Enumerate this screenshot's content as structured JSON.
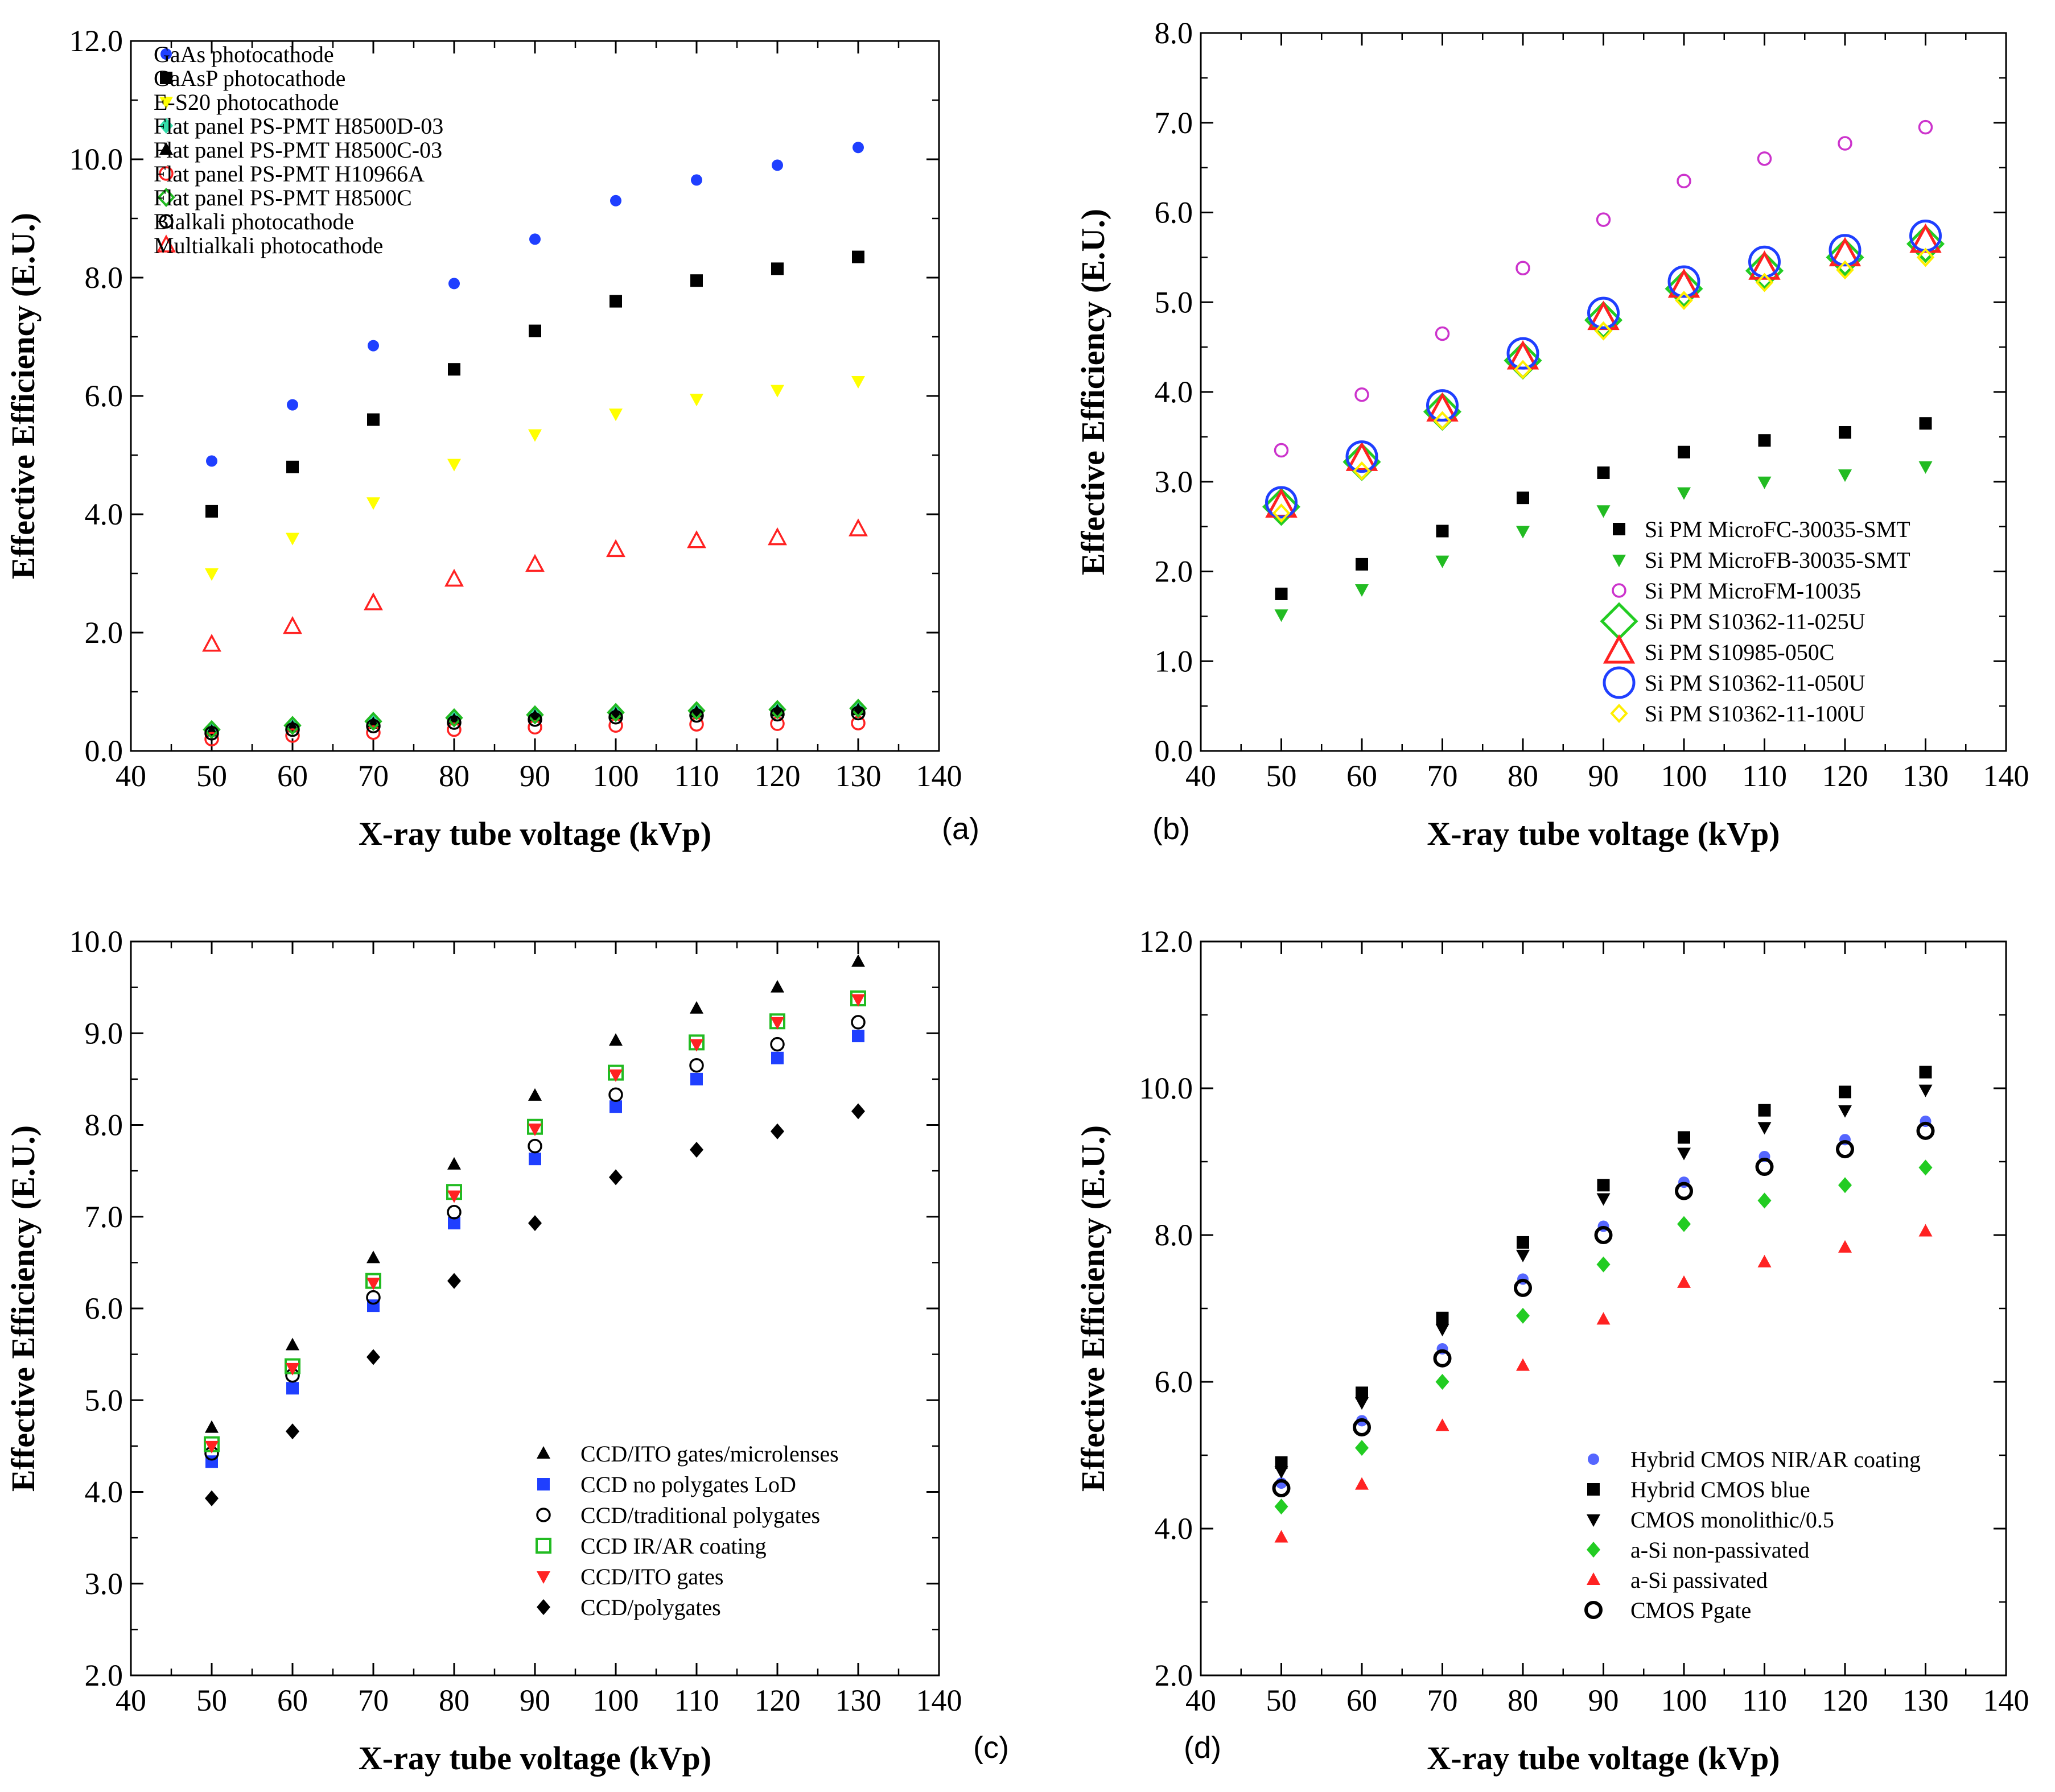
{
  "chart_data": [
    {
      "type": "scatter",
      "panel_label": "(a)",
      "xlabel": "X-ray tube voltage (kVp)",
      "ylabel": "Effective Efficiency (E.U.)",
      "xlim": [
        40,
        140
      ],
      "ylim": [
        0,
        12
      ],
      "xticks": [
        "40",
        "50",
        "60",
        "70",
        "80",
        "90",
        "100",
        "110",
        "120",
        "130",
        "140"
      ],
      "yticks": [
        "0.0",
        "2.0",
        "4.0",
        "6.0",
        "8.0",
        "10.0",
        "12.0"
      ],
      "grid": false,
      "legend_position": "top-left",
      "x": [
        50,
        60,
        70,
        80,
        90,
        100,
        110,
        120,
        130
      ],
      "series": [
        {
          "name": "GaAs photocathode",
          "marker": "dot",
          "color": "#1f3fff",
          "values": [
            4.9,
            5.85,
            6.85,
            7.9,
            8.65,
            9.3,
            9.65,
            9.9,
            10.2
          ]
        },
        {
          "name": "GaAsP photocathode",
          "marker": "square",
          "color": "#000000",
          "values": [
            4.05,
            4.8,
            5.6,
            6.45,
            7.1,
            7.6,
            7.95,
            8.15,
            8.35
          ]
        },
        {
          "name": "E-S20 photocathode",
          "marker": "tri-down",
          "color": "#ffff00",
          "values": [
            3.0,
            3.6,
            4.2,
            4.85,
            5.35,
            5.7,
            5.95,
            6.1,
            6.25
          ]
        },
        {
          "name": "Flat panel PS-PMT H8500D-03",
          "marker": "diamond",
          "color": "#33ddaa",
          "values": [
            0.35,
            0.42,
            0.48,
            0.55,
            0.6,
            0.63,
            0.66,
            0.68,
            0.7
          ]
        },
        {
          "name": "Flat panel PS-PMT H8500C-03",
          "marker": "triangle",
          "color": "#000000",
          "values": [
            0.33,
            0.4,
            0.46,
            0.52,
            0.58,
            0.62,
            0.65,
            0.67,
            0.69
          ]
        },
        {
          "name": "Flat panel PS-PMT H10966A",
          "marker": "circle-open",
          "color": "#ff2222",
          "values": [
            0.2,
            0.26,
            0.31,
            0.36,
            0.4,
            0.43,
            0.45,
            0.46,
            0.47
          ]
        },
        {
          "name": "Flat panel PS-PMT H8500C",
          "marker": "diamond-open",
          "color": "#22bb22",
          "values": [
            0.36,
            0.43,
            0.5,
            0.56,
            0.61,
            0.65,
            0.68,
            0.7,
            0.72
          ]
        },
        {
          "name": "Bialkali photocathode",
          "marker": "circle-open",
          "color": "#000000",
          "values": [
            0.3,
            0.36,
            0.42,
            0.48,
            0.53,
            0.57,
            0.6,
            0.62,
            0.64
          ]
        },
        {
          "name": "Multialkali photocathode",
          "marker": "triangle-open",
          "color": "#ff2222",
          "values": [
            1.8,
            2.1,
            2.5,
            2.9,
            3.15,
            3.4,
            3.55,
            3.6,
            3.75
          ]
        }
      ]
    },
    {
      "type": "scatter",
      "panel_label": "(b)",
      "xlabel": "X-ray tube voltage (kVp)",
      "ylabel": "Effective Efficiency (E.U.)",
      "xlim": [
        40,
        140
      ],
      "ylim": [
        0,
        8
      ],
      "xticks": [
        "40",
        "50",
        "60",
        "70",
        "80",
        "90",
        "100",
        "110",
        "120",
        "130",
        "140"
      ],
      "yticks": [
        "0.0",
        "1.0",
        "2.0",
        "3.0",
        "4.0",
        "5.0",
        "6.0",
        "7.0",
        "8.0"
      ],
      "grid": false,
      "legend_position": "bottom-right",
      "x": [
        50,
        60,
        70,
        80,
        90,
        100,
        110,
        120,
        130
      ],
      "series": [
        {
          "name": "Si PM MicroFC-30035-SMT",
          "marker": "square",
          "color": "#000000",
          "values": [
            1.75,
            2.08,
            2.45,
            2.82,
            3.1,
            3.33,
            3.46,
            3.55,
            3.65
          ]
        },
        {
          "name": "Si PM MicroFB-30035-SMT",
          "marker": "tri-down",
          "color": "#22bb22",
          "values": [
            1.52,
            1.8,
            2.12,
            2.45,
            2.68,
            2.88,
            3.0,
            3.08,
            3.17
          ]
        },
        {
          "name": "Si PM MicroFM-10035",
          "marker": "circle-open",
          "color": "#cc33cc",
          "values": [
            3.35,
            3.97,
            4.65,
            5.38,
            5.92,
            6.35,
            6.6,
            6.77,
            6.95
          ]
        },
        {
          "name": "Si PM S10362-11-025U",
          "marker": "diamond-open-lg",
          "color": "#22cc22",
          "values": [
            2.72,
            3.22,
            3.78,
            4.35,
            4.8,
            5.15,
            5.35,
            5.5,
            5.65
          ]
        },
        {
          "name": "Si PM S10985-050C",
          "marker": "triangle-open-lg",
          "color": "#ff2222",
          "values": [
            2.73,
            3.25,
            3.8,
            4.38,
            4.82,
            5.18,
            5.38,
            5.53,
            5.68
          ]
        },
        {
          "name": "Si PM S10362-11-050U",
          "marker": "circle-open-lg",
          "color": "#1f3fff",
          "values": [
            2.77,
            3.28,
            3.85,
            4.43,
            4.88,
            5.23,
            5.45,
            5.58,
            5.74
          ]
        },
        {
          "name": "Si PM S10362-11-100U",
          "marker": "diamond-open",
          "color": "#ffee00",
          "values": [
            2.65,
            3.12,
            3.68,
            4.25,
            4.68,
            5.02,
            5.22,
            5.36,
            5.5
          ]
        }
      ]
    },
    {
      "type": "scatter",
      "panel_label": "(c)",
      "xlabel": "X-ray tube voltage (kVp)",
      "ylabel": "Effective Efficiency (E.U.)",
      "xlim": [
        40,
        140
      ],
      "ylim": [
        2,
        10
      ],
      "xticks": [
        "40",
        "50",
        "60",
        "70",
        "80",
        "90",
        "100",
        "110",
        "120",
        "130",
        "140"
      ],
      "yticks": [
        "2.0",
        "3.0",
        "4.0",
        "5.0",
        "6.0",
        "7.0",
        "8.0",
        "9.0",
        "10.0"
      ],
      "grid": false,
      "legend_position": "bottom-right",
      "x": [
        50,
        60,
        70,
        80,
        90,
        100,
        110,
        120,
        130
      ],
      "series": [
        {
          "name": "CCD/ITO gates/microlenses",
          "marker": "triangle",
          "color": "#000000",
          "values": [
            4.7,
            5.6,
            6.55,
            7.57,
            8.32,
            8.92,
            9.27,
            9.5,
            9.78
          ]
        },
        {
          "name": "CCD no polygates LoD",
          "marker": "square",
          "color": "#1f3fff",
          "values": [
            4.33,
            5.13,
            6.03,
            6.93,
            7.63,
            8.2,
            8.5,
            8.73,
            8.97
          ]
        },
        {
          "name": "CCD/traditional polygates",
          "marker": "circle-open",
          "color": "#000000",
          "values": [
            4.42,
            5.27,
            6.12,
            7.05,
            7.77,
            8.33,
            8.65,
            8.88,
            9.12
          ]
        },
        {
          "name": "CCD IR/AR coating",
          "marker": "square-open",
          "color": "#22bb22",
          "values": [
            4.52,
            5.37,
            6.3,
            7.27,
            7.98,
            8.57,
            8.9,
            9.13,
            9.38
          ]
        },
        {
          "name": "CCD/ITO gates",
          "marker": "tri-down",
          "color": "#ff2222",
          "values": [
            4.5,
            5.35,
            6.28,
            7.23,
            7.96,
            8.55,
            8.88,
            9.12,
            9.37
          ]
        },
        {
          "name": "CCD/polygates",
          "marker": "diamond",
          "color": "#000000",
          "values": [
            3.93,
            4.66,
            5.47,
            6.3,
            6.93,
            7.43,
            7.73,
            7.93,
            8.15
          ]
        }
      ]
    },
    {
      "type": "scatter",
      "panel_label": "(d)",
      "xlabel": "X-ray tube voltage (kVp)",
      "ylabel": "Effective Efficiency (E.U.)",
      "xlim": [
        40,
        140
      ],
      "ylim": [
        2,
        12
      ],
      "xticks": [
        "40",
        "50",
        "60",
        "70",
        "80",
        "90",
        "100",
        "110",
        "120",
        "130",
        "140"
      ],
      "yticks": [
        "2.0",
        "4.0",
        "6.0",
        "8.0",
        "10.0",
        "12.0"
      ],
      "grid": false,
      "legend_position": "bottom-right",
      "x": [
        50,
        60,
        70,
        80,
        90,
        100,
        110,
        120,
        130
      ],
      "series": [
        {
          "name": "Hybrid CMOS NIR/AR coating",
          "marker": "dot",
          "color": "#5566ff",
          "values": [
            4.62,
            5.47,
            6.45,
            7.4,
            8.12,
            8.72,
            9.07,
            9.3,
            9.55
          ]
        },
        {
          "name": "Hybrid CMOS blue",
          "marker": "square",
          "color": "#000000",
          "values": [
            4.9,
            5.85,
            6.87,
            7.9,
            8.68,
            9.33,
            9.7,
            9.95,
            10.22
          ]
        },
        {
          "name": "CMOS monolithic/0.5",
          "marker": "tri-down",
          "color": "#000000",
          "values": [
            4.78,
            5.72,
            6.72,
            7.73,
            8.5,
            9.12,
            9.47,
            9.7,
            9.98
          ]
        },
        {
          "name": "a-Si non-passivated",
          "marker": "diamond",
          "color": "#22cc22",
          "values": [
            4.3,
            5.1,
            6.0,
            6.9,
            7.6,
            8.15,
            8.47,
            8.68,
            8.92
          ]
        },
        {
          "name": "a-Si passivated",
          "marker": "triangle",
          "color": "#ff2222",
          "values": [
            3.88,
            4.6,
            5.4,
            6.22,
            6.85,
            7.35,
            7.63,
            7.83,
            8.05
          ]
        },
        {
          "name": "CMOS Pgate",
          "marker": "circle-open-bold",
          "color": "#000000",
          "values": [
            4.55,
            5.38,
            6.32,
            7.28,
            8.0,
            8.6,
            8.93,
            9.17,
            9.42
          ]
        }
      ]
    }
  ]
}
